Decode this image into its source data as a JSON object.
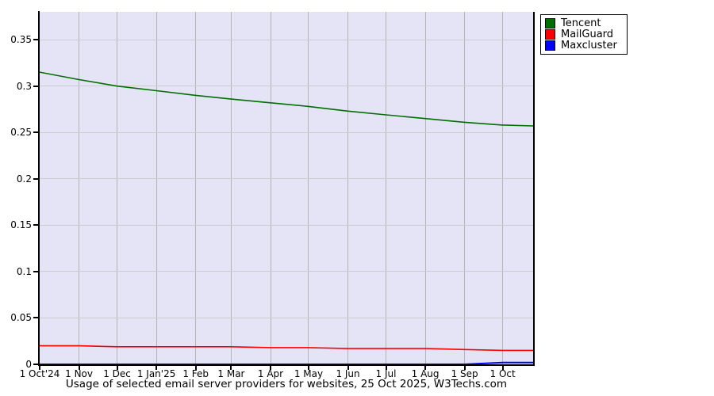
{
  "title": "Usage of selected email server providers for websites, 25 Oct 2025, W3Techs.com",
  "legend": [
    {
      "label": "Tencent",
      "color": "#006e00"
    },
    {
      "label": "MailGuard",
      "color": "#ff0000"
    },
    {
      "label": "Maxcluster",
      "color": "#0000ff"
    }
  ],
  "chart_data": {
    "type": "line",
    "title": "Usage of selected email server providers for websites, 25 Oct 2025, W3Techs.com",
    "xlabel": "",
    "ylabel": "",
    "x_tick_labels": [
      "1 Oct'24",
      "1 Nov",
      "1 Dec",
      "1 Jan'25",
      "1 Feb",
      "1 Mar",
      "1 Apr",
      "1 May",
      "1 Jun",
      "1 Jul",
      "1 Aug",
      "1 Sep",
      "1 Oct"
    ],
    "x_days": [
      0,
      31,
      61,
      92,
      123,
      151,
      182,
      212,
      243,
      273,
      304,
      335,
      365,
      389
    ],
    "x_total_days": 389,
    "y_tick_values": [
      0,
      0.05,
      0.1,
      0.15,
      0.2,
      0.25,
      0.3,
      0.35
    ],
    "y_tick_labels": [
      "0",
      "0.05",
      "0.1",
      "0.15",
      "0.2",
      "0.25",
      "0.3",
      "0.35"
    ],
    "ylim": [
      0,
      0.38
    ],
    "grid": true,
    "legend_position": "outside-top-right",
    "plot_bg": "#e4e4f6",
    "series": [
      {
        "name": "Tencent",
        "color": "#006e00",
        "values": [
          0.315,
          0.307,
          0.3,
          0.295,
          0.29,
          0.286,
          0.282,
          0.278,
          0.273,
          0.269,
          0.265,
          0.261,
          0.258,
          0.257
        ]
      },
      {
        "name": "MailGuard",
        "color": "#ff0000",
        "values": [
          0.02,
          0.02,
          0.019,
          0.019,
          0.019,
          0.019,
          0.018,
          0.018,
          0.017,
          0.017,
          0.017,
          0.016,
          0.015,
          0.015
        ]
      },
      {
        "name": "Maxcluster",
        "color": "#0000ff",
        "values": [
          0,
          0,
          0,
          0,
          0,
          0,
          0,
          0,
          0,
          0,
          0,
          0,
          0.002,
          0.002
        ]
      }
    ]
  }
}
